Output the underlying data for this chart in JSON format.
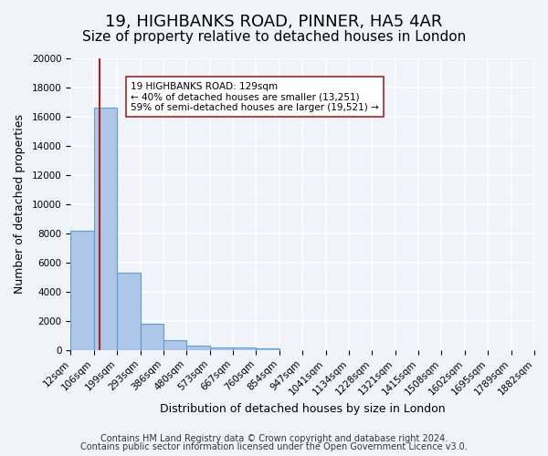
{
  "title": "19, HIGHBANKS ROAD, PINNER, HA5 4AR",
  "subtitle": "Size of property relative to detached houses in London",
  "xlabel": "Distribution of detached houses by size in London",
  "ylabel": "Number of detached properties",
  "bar_values": [
    8200,
    16600,
    5300,
    1800,
    700,
    300,
    200,
    150,
    100,
    0,
    0,
    0,
    0,
    0,
    0,
    0,
    0,
    0,
    0,
    0
  ],
  "bin_labels": [
    "12sqm",
    "106sqm",
    "199sqm",
    "293sqm",
    "386sqm",
    "480sqm",
    "573sqm",
    "667sqm",
    "760sqm",
    "854sqm",
    "947sqm",
    "1041sqm",
    "1134sqm",
    "1228sqm",
    "1321sqm",
    "1415sqm",
    "1508sqm",
    "1602sqm",
    "1695sqm",
    "1789sqm",
    "1882sqm"
  ],
  "bar_color": "#aec6e8",
  "bar_edge_color": "#5a9fd4",
  "red_line_color": "#aa2222",
  "annotation_text": "19 HIGHBANKS ROAD: 129sqm\n← 40% of detached houses are smaller (13,251)\n59% of semi-detached houses are larger (19,521) →",
  "annotation_box_color": "#ffffff",
  "annotation_box_edge": "#aa2222",
  "ylim": [
    0,
    20000
  ],
  "yticks": [
    0,
    2000,
    4000,
    6000,
    8000,
    10000,
    12000,
    14000,
    16000,
    18000,
    20000
  ],
  "footer1": "Contains HM Land Registry data © Crown copyright and database right 2024.",
  "footer2": "Contains public sector information licensed under the Open Government Licence v3.0.",
  "bg_color": "#f0f4fa",
  "grid_color": "#ffffff",
  "title_fontsize": 13,
  "subtitle_fontsize": 11,
  "axis_label_fontsize": 9,
  "tick_fontsize": 7.5,
  "footer_fontsize": 7
}
